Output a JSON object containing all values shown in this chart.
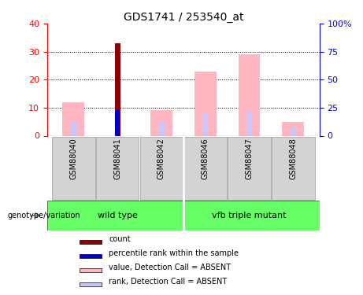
{
  "title": "GDS1741 / 253540_at",
  "samples": [
    "GSM88040",
    "GSM88041",
    "GSM88042",
    "GSM88046",
    "GSM88047",
    "GSM88048"
  ],
  "groups": [
    {
      "name": "wild type",
      "samples": [
        "GSM88040",
        "GSM88041",
        "GSM88042"
      ],
      "color": "#66ff66"
    },
    {
      "name": "vfb triple mutant",
      "samples": [
        "GSM88046",
        "GSM88047",
        "GSM88048"
      ],
      "color": "#66ff66"
    }
  ],
  "count_values": [
    0,
    33,
    0,
    0,
    0,
    0
  ],
  "percentile_rank_values": [
    0,
    9,
    0,
    0,
    0,
    0
  ],
  "value_absent": [
    12,
    0,
    9,
    23,
    29,
    5
  ],
  "rank_absent": [
    5,
    0,
    4.5,
    8,
    8.5,
    3
  ],
  "ylim_left": [
    0,
    40
  ],
  "ylim_right": [
    0,
    100
  ],
  "yticks_left": [
    0,
    10,
    20,
    30,
    40
  ],
  "yticks_right": [
    0,
    25,
    50,
    75,
    100
  ],
  "color_count": "#8B0000",
  "color_percentile": "#0000cd",
  "color_value_absent": "#ffb6c1",
  "color_rank_absent": "#c8c8ff",
  "bg_plot": "#ffffff",
  "bg_label": "#d3d3d3",
  "genotype_label": "genotype/variation",
  "legend_items": [
    {
      "color": "#8B0000",
      "label": "count"
    },
    {
      "color": "#0000cd",
      "label": "percentile rank within the sample"
    },
    {
      "color": "#ffb6c1",
      "label": "value, Detection Call = ABSENT"
    },
    {
      "color": "#c8c8ff",
      "label": "rank, Detection Call = ABSENT"
    }
  ],
  "bar_width": 0.35
}
